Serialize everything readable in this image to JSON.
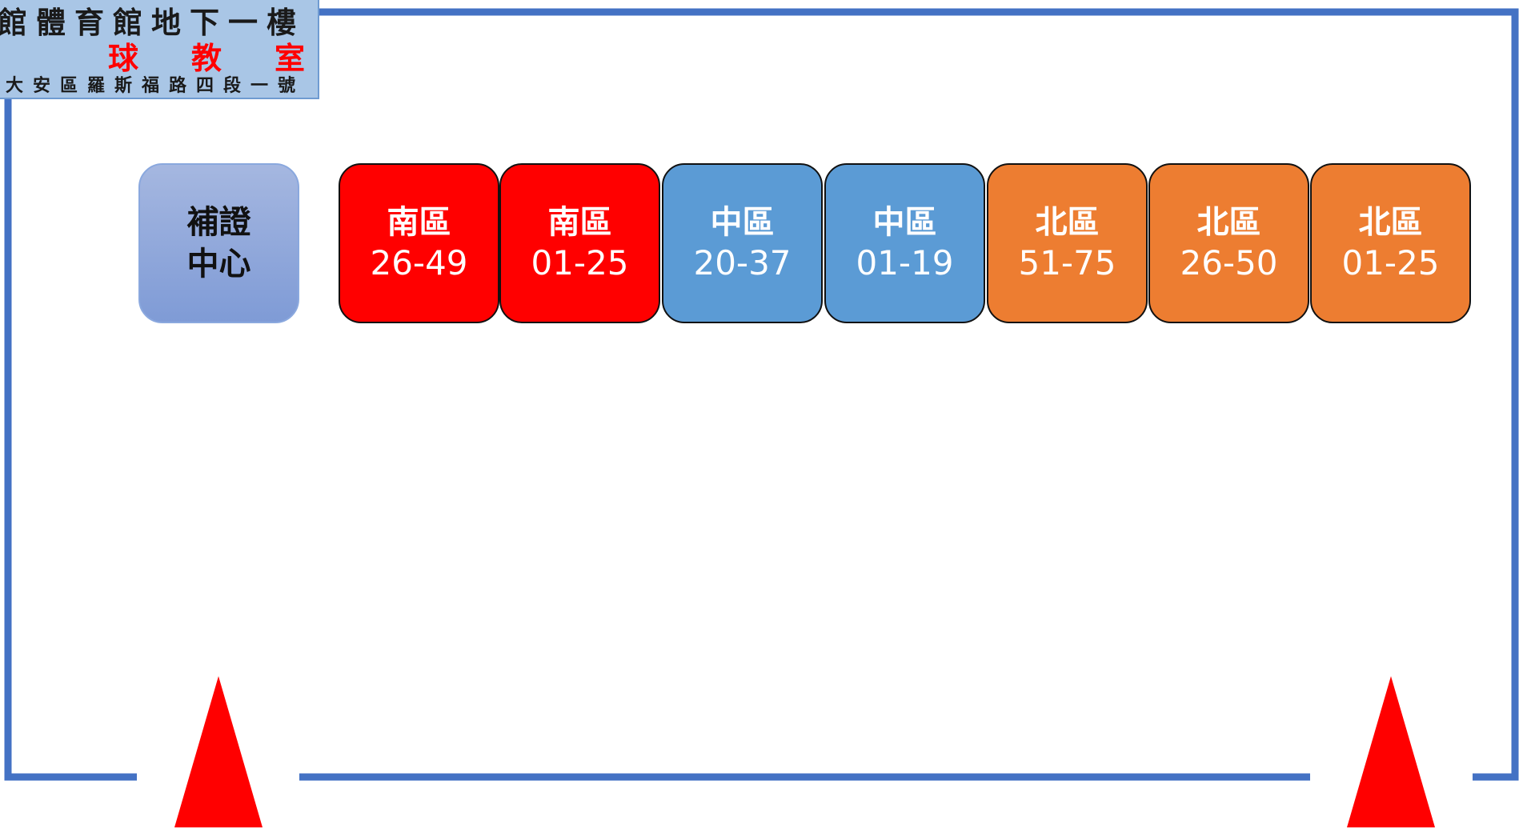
{
  "header": {
    "line1": "館體育館地下一樓",
    "line2": "球教室",
    "line3": "市大安區羅斯福路四段一號"
  },
  "reissue_center": {
    "line1": "補證",
    "line2": "中心"
  },
  "booths": [
    {
      "zone": "南區",
      "range": "26-49",
      "color": "#ff0000"
    },
    {
      "zone": "南區",
      "range": "01-25",
      "color": "#ff0000"
    },
    {
      "zone": "中區",
      "range": "20-37",
      "color": "#5b9bd5"
    },
    {
      "zone": "中區",
      "range": "01-19",
      "color": "#5b9bd5"
    },
    {
      "zone": "北區",
      "range": "51-75",
      "color": "#ed7d31"
    },
    {
      "zone": "北區",
      "range": "26-50",
      "color": "#ed7d31"
    },
    {
      "zone": "北區",
      "range": "01-25",
      "color": "#ed7d31"
    }
  ],
  "colors": {
    "wall": "#4472c4",
    "arrow": "#ff0000",
    "header_background": "#a9c6e6"
  },
  "icons": {
    "entrance_arrow": "red-triangle-arrow"
  }
}
